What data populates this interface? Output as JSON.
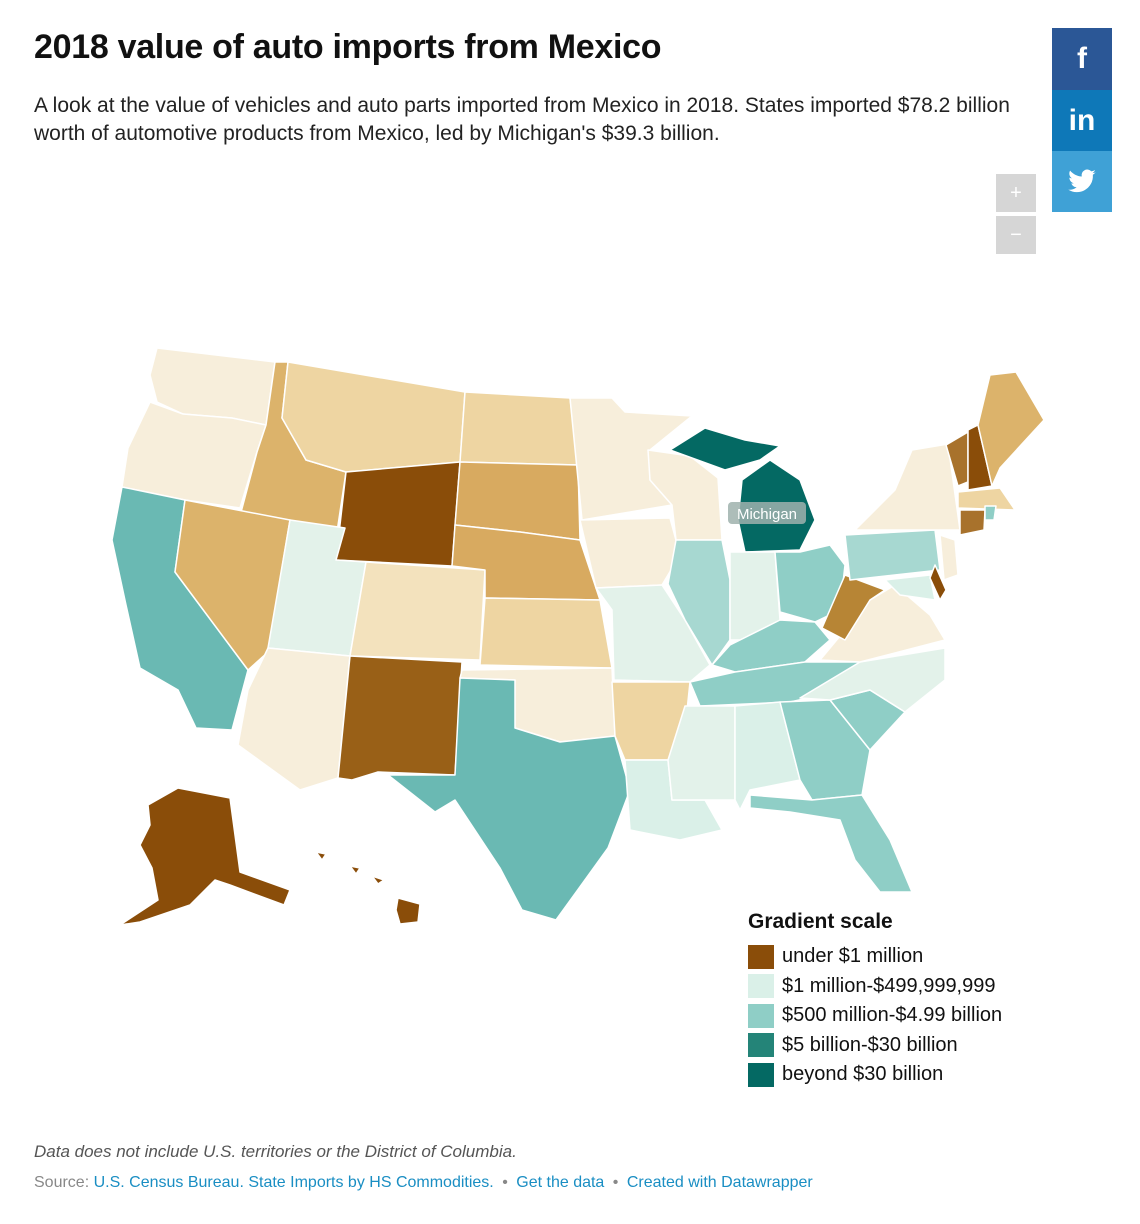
{
  "header": {
    "title": "2018 value of auto imports from Mexico",
    "description": "A look at the value of vehicles and auto parts imported from Mexico in 2018. States imported $78.2 billion worth of automotive products from Mexico, led by Michigan's $39.3 billion."
  },
  "share": {
    "facebook": "f",
    "linkedin": "in",
    "twitter": "twitter-bird"
  },
  "zoom": {
    "in": "+",
    "out": "−"
  },
  "map": {
    "label": "Michigan"
  },
  "colors": {
    "under_1m": "#8a4d09",
    "one_m": "#daf0e8",
    "five_hundred_m": "#8fcec6",
    "five_b": "#248478",
    "thirty_b": "#046963",
    "pale1": "#f7eedb",
    "pale2": "#f3e2bd",
    "pale3": "#eed5a2",
    "gold": "#dcb36b",
    "brown_mid": "#a8722c",
    "cyan_mid": "#6ab9b3",
    "mint": "#a7d8d1",
    "light": "#e3f2ea"
  },
  "legend": {
    "title": "Gradient scale",
    "items": [
      {
        "label": "under $1 million",
        "color": "#8a4d09"
      },
      {
        "label": "$1 million-$499,999,999",
        "color": "#daf0e8"
      },
      {
        "label": "$500 million-$4.99 billion",
        "color": "#8fcec6"
      },
      {
        "label": "$5 billion-$30 billion",
        "color": "#248478"
      },
      {
        "label": "beyond $30 billion",
        "color": "#046963"
      }
    ]
  },
  "footer": {
    "note": "Data does not include U.S. territories or the District of Columbia.",
    "source_prefix": "Source: ",
    "source_link": "U.S. Census Bureau. State Imports by HS Commodities.",
    "sep": "•",
    "get_data": "Get the data",
    "credit": "Created with Datawrapper"
  }
}
